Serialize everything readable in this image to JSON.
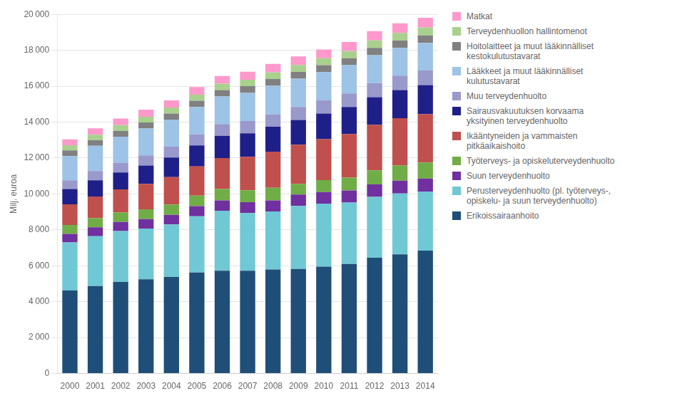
{
  "chart_data": {
    "type": "bar",
    "stacked": true,
    "grid": true,
    "legend": "right",
    "ylabel": "Milj. euroa",
    "categories": [
      "2000",
      "2001",
      "2002",
      "2003",
      "2004",
      "2005",
      "2006",
      "2007",
      "2008",
      "2009",
      "2010",
      "2011",
      "2012",
      "2013",
      "2014"
    ],
    "series": [
      {
        "name": "Erikoissairaanhoito",
        "color": "#1F4E79",
        "values": [
          4620,
          4870,
          5100,
          5250,
          5380,
          5620,
          5720,
          5720,
          5790,
          5820,
          5950,
          6100,
          6450,
          6640,
          6840
        ]
      },
      {
        "name": "Perusterveydenhuolto (pl. työterveys-,\nopiskelu- ja suun terveydenhuolto)",
        "color": "#70C8D4",
        "values": [
          2680,
          2780,
          2830,
          2820,
          2920,
          3140,
          3340,
          3220,
          3230,
          3510,
          3510,
          3420,
          3390,
          3390,
          3290
        ]
      },
      {
        "name": "Suun terveydenhuolto",
        "color": "#7030A0",
        "values": [
          480,
          490,
          510,
          530,
          540,
          560,
          580,
          600,
          620,
          640,
          650,
          670,
          690,
          710,
          730
        ]
      },
      {
        "name": "Työterveys- ja opiskeluterveydenhuolto",
        "color": "#70AD47",
        "values": [
          490,
          520,
          530,
          540,
          570,
          590,
          630,
          660,
          700,
          590,
          660,
          720,
          780,
          840,
          890
        ]
      },
      {
        "name": "Ikääntyneiden ja vammaisten\npitkäaikaishoito",
        "color": "#C0504D",
        "values": [
          1150,
          1200,
          1280,
          1420,
          1530,
          1620,
          1730,
          1870,
          2020,
          2180,
          2280,
          2430,
          2540,
          2640,
          2700
        ]
      },
      {
        "name": "Sairausvakuutuksen korvaama\nyksityinen terveydenhuolto",
        "color": "#1F1F8A",
        "values": [
          850,
          900,
          950,
          1020,
          1090,
          1170,
          1240,
          1310,
          1380,
          1380,
          1430,
          1500,
          1540,
          1570,
          1610
        ]
      },
      {
        "name": "Muu terveydenhuolto",
        "color": "#9999CC",
        "values": [
          490,
          510,
          540,
          570,
          600,
          620,
          650,
          680,
          700,
          720,
          740,
          760,
          780,
          800,
          820
        ]
      },
      {
        "name": "Lääkkeet ja muut lääkinnälliset\nkulutustavarat",
        "color": "#9DC3E6",
        "values": [
          1350,
          1410,
          1450,
          1490,
          1510,
          1520,
          1540,
          1570,
          1580,
          1580,
          1570,
          1570,
          1560,
          1540,
          1530
        ]
      },
      {
        "name": "Hoitolaitteet ja muut lääkinnälliset\nkestokulutustavarat",
        "color": "#808080",
        "values": [
          310,
          320,
          330,
          340,
          340,
          350,
          360,
          370,
          380,
          380,
          380,
          390,
          400,
          410,
          420
        ]
      },
      {
        "name": "Terveydenhuollon hallintomenot",
        "color": "#A9D18E",
        "values": [
          290,
          300,
          310,
          320,
          330,
          340,
          350,
          360,
          370,
          380,
          390,
          400,
          420,
          430,
          440
        ]
      },
      {
        "name": "Matkat",
        "color": "#FF99CC",
        "values": [
          330,
          350,
          370,
          390,
          400,
          420,
          430,
          450,
          470,
          480,
          490,
          500,
          520,
          530,
          540
        ]
      }
    ],
    "ylim": [
      0,
      20000
    ],
    "yticks": [
      0,
      {
        "value": 2000,
        "label": "2 000"
      },
      {
        "value": 4000,
        "label": "4 000"
      },
      {
        "value": 6000,
        "label": "6 000"
      },
      {
        "value": 8000,
        "label": "8 000"
      },
      {
        "value": 10000,
        "label": "10 000"
      },
      {
        "value": 12000,
        "label": "12 000"
      },
      {
        "value": 14000,
        "label": "14 000"
      },
      {
        "value": 16000,
        "label": "16 000"
      },
      {
        "value": 18000,
        "label": "18 000"
      },
      {
        "value": 20000,
        "label": "20 000"
      }
    ]
  }
}
